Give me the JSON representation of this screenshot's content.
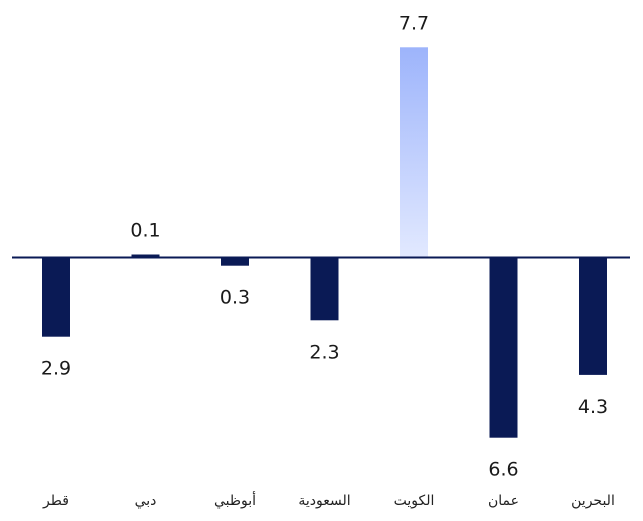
{
  "chart_data": {
    "type": "bar",
    "categories": [
      "قطر",
      "دبي",
      "أبوظبي",
      "السعودية",
      "الكويت",
      "عمان",
      "البحرين"
    ],
    "values": [
      -2.9,
      0.1,
      -0.3,
      -2.3,
      7.7,
      -6.6,
      -4.3
    ],
    "labels": [
      "2.9",
      "0.1",
      "0.3",
      "2.3",
      "7.7",
      "6.6",
      "4.3"
    ],
    "ylim": [
      -6.6,
      7.7
    ],
    "grid": false,
    "colors": {
      "negative": "#0a1a55",
      "positive": "#0a1a55",
      "highlight_top": "#9db4fb",
      "highlight_bottom": "#e2e9ff",
      "zero_line": "#0a1a55"
    },
    "highlight_index": 4
  }
}
